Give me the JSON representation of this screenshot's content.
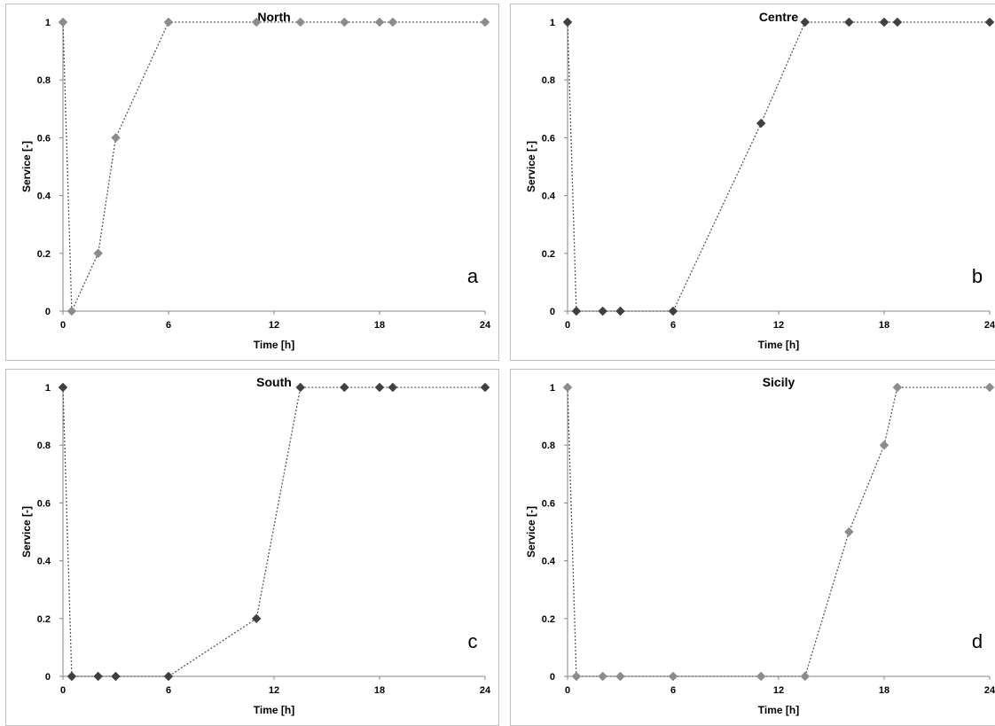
{
  "chart_data": [
    {
      "type": "line",
      "title": "North",
      "xlabel": "Time [h]",
      "ylabel": "Service [-]",
      "panel_label": "a",
      "xlim": [
        0,
        24
      ],
      "ylim": [
        0,
        1
      ],
      "xticks": [
        "0",
        "6",
        "12",
        "18",
        "24"
      ],
      "yticks": [
        "0",
        "0.2",
        "0.4",
        "0.6",
        "0.8",
        "1"
      ],
      "marker_color": "#8c8c8c",
      "line_color": "#595959",
      "x": [
        0,
        0.5,
        2,
        3,
        6,
        11,
        13.5,
        16,
        18,
        18.75,
        24
      ],
      "y": [
        1,
        0,
        0.2,
        0.6,
        1,
        1,
        1,
        1,
        1,
        1,
        1
      ]
    },
    {
      "type": "line",
      "title": "Centre",
      "xlabel": "Time [h]",
      "ylabel": "Service [-]",
      "panel_label": "b",
      "xlim": [
        0,
        24
      ],
      "ylim": [
        0,
        1
      ],
      "xticks": [
        "0",
        "6",
        "12",
        "18",
        "24"
      ],
      "yticks": [
        "0",
        "0.2",
        "0.4",
        "0.6",
        "0.8",
        "1"
      ],
      "marker_color": "#404040",
      "line_color": "#595959",
      "x": [
        0,
        0.5,
        2,
        3,
        6,
        11,
        13.5,
        16,
        18,
        18.75,
        24
      ],
      "y": [
        1,
        0,
        0,
        0,
        0,
        0.65,
        1,
        1,
        1,
        1,
        1
      ]
    },
    {
      "type": "line",
      "title": "South",
      "xlabel": "Time [h]",
      "ylabel": "Service [-]",
      "panel_label": "c",
      "xlim": [
        0,
        24
      ],
      "ylim": [
        0,
        1
      ],
      "xticks": [
        "0",
        "6",
        "12",
        "18",
        "24"
      ],
      "yticks": [
        "0",
        "0.2",
        "0.4",
        "0.6",
        "0.8",
        "1"
      ],
      "marker_color": "#404040",
      "line_color": "#595959",
      "x": [
        0,
        0.5,
        2,
        3,
        6,
        11,
        13.5,
        16,
        18,
        18.75,
        24
      ],
      "y": [
        1,
        0,
        0,
        0,
        0,
        0.2,
        1,
        1,
        1,
        1,
        1
      ]
    },
    {
      "type": "line",
      "title": "Sicily",
      "xlabel": "Time [h]",
      "ylabel": "Service [-]",
      "panel_label": "d",
      "xlim": [
        0,
        24
      ],
      "ylim": [
        0,
        1
      ],
      "xticks": [
        "0",
        "6",
        "12",
        "18",
        "24"
      ],
      "yticks": [
        "0",
        "0.2",
        "0.4",
        "0.6",
        "0.8",
        "1"
      ],
      "marker_color": "#8c8c8c",
      "line_color": "#595959",
      "x": [
        0,
        0.5,
        2,
        3,
        6,
        11,
        13.5,
        16,
        18,
        18.75,
        24
      ],
      "y": [
        1,
        0,
        0,
        0,
        0,
        0,
        0,
        0.5,
        0.8,
        1,
        1
      ]
    }
  ]
}
